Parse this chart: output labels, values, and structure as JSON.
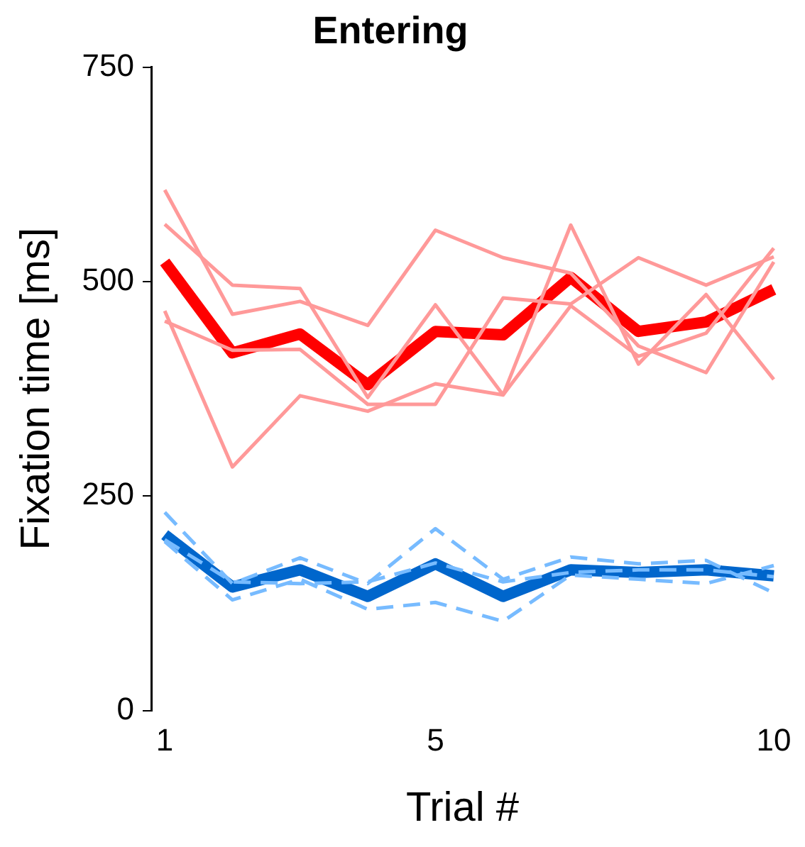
{
  "chart_data": {
    "type": "line",
    "title": "Entering",
    "xlabel": "Trial #",
    "ylabel": "Fixation time [ms]",
    "x": [
      1,
      2,
      3,
      4,
      5,
      6,
      7,
      8,
      9,
      10
    ],
    "xlim": [
      0.8,
      10
    ],
    "xticks": [
      1,
      5,
      10
    ],
    "ylim": [
      0,
      750
    ],
    "yticks": [
      0,
      250,
      500,
      750
    ],
    "grid": false,
    "legend": false,
    "marker": "none",
    "series": [
      {
        "color": "#ff9999",
        "line_style": "solid",
        "values": [
          607,
          462,
          477,
          449,
          560,
          528,
          510,
          425,
          394,
          523
        ]
      },
      {
        "color": "#ff9999",
        "line_style": "solid",
        "values": [
          567,
          496,
          492,
          365,
          473,
          368,
          566,
          404,
          485,
          386
        ]
      },
      {
        "color": "#ff9999",
        "line_style": "solid",
        "values": [
          466,
          284,
          367,
          349,
          381,
          368,
          472,
          413,
          440,
          539
        ]
      },
      {
        "color": "#ff9999",
        "line_style": "solid",
        "values": [
          454,
          420,
          421,
          357,
          357,
          481,
          474,
          528,
          496,
          529
        ]
      },
      {
        "color": "#77bbff",
        "line_style": "dashed",
        "values": [
          231,
          148,
          178,
          148,
          212,
          153,
          179,
          171,
          175,
          137
        ]
      },
      {
        "color": "#77bbff",
        "line_style": "dashed",
        "values": [
          197,
          129,
          153,
          118,
          126,
          104,
          158,
          153,
          148,
          169
        ]
      },
      {
        "color": "#77bbff",
        "line_style": "dashed",
        "values": [
          199,
          150,
          148,
          150,
          172,
          150,
          161,
          164,
          164,
          156
        ]
      },
      {
        "color": "#ff0000",
        "line_style": "solid",
        "values": [
          523,
          417,
          439,
          380,
          442,
          438,
          505,
          442,
          453,
          491
        ]
      },
      {
        "color": "#0066cc",
        "line_style": "solid",
        "values": [
          205,
          144,
          164,
          133,
          171,
          133,
          164,
          161,
          164,
          157
        ]
      }
    ]
  }
}
